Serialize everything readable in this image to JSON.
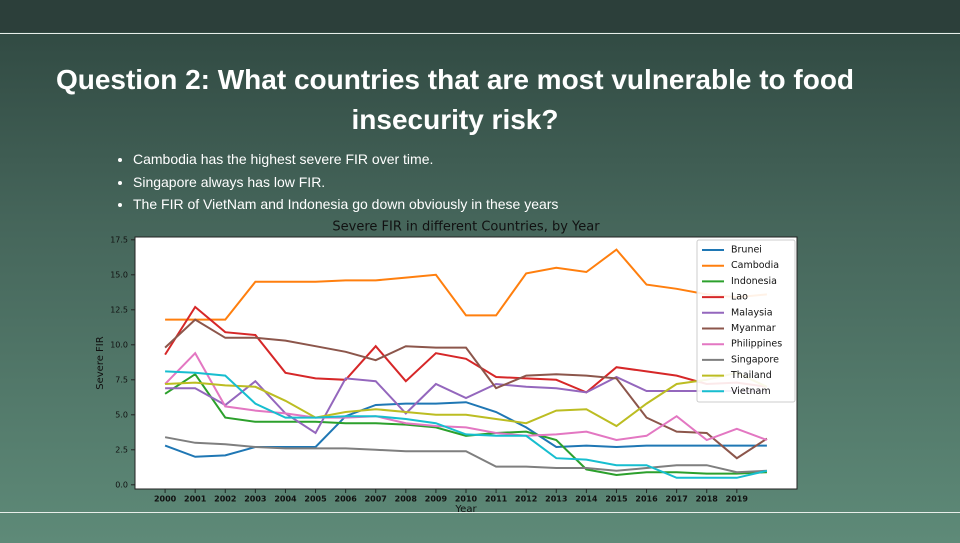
{
  "slide": {
    "title": "Question 2: What countries that are most vulnerable to food insecurity risk?",
    "bullets": [
      "Cambodia has the highest severe FIR over time.",
      "Singapore always has low FIR.",
      "The FIR of VietNam and Indonesia go down obviously in these years"
    ]
  },
  "chart_data": {
    "type": "line",
    "title": "Severe FIR  in different Countries, by Year",
    "x_label": "Year",
    "y_label": "Severe FIR",
    "x": [
      2000,
      2001,
      2002,
      2003,
      2004,
      2005,
      2006,
      2007,
      2008,
      2009,
      2010,
      2011,
      2012,
      2013,
      2014,
      2015,
      2016,
      2017,
      2018,
      2019,
      2020
    ],
    "xlim": [
      1999,
      2021
    ],
    "xticks": [
      2000,
      2001,
      2002,
      2003,
      2004,
      2005,
      2006,
      2007,
      2008,
      2009,
      2010,
      2011,
      2012,
      2013,
      2014,
      2015,
      2016,
      2017,
      2018,
      2019
    ],
    "ylim": [
      -0.3,
      17.7
    ],
    "yticks": [
      {
        "value": 0,
        "label": "0.0"
      },
      2.5,
      {
        "value": 5,
        "label": "5.0"
      },
      7.5,
      {
        "value": 10,
        "label": "10.0"
      },
      12.5,
      {
        "value": 15,
        "label": "15.0"
      },
      17.5
    ],
    "legend": "upper right",
    "series": [
      {
        "name": "Brunei",
        "color": "#1f77b4",
        "values": [
          2.8,
          2.0,
          2.1,
          2.7,
          2.7,
          2.7,
          4.9,
          5.7,
          5.8,
          5.8,
          5.9,
          5.2,
          4.1,
          2.7,
          2.8,
          2.7,
          2.8,
          2.8,
          2.8,
          2.8,
          2.8
        ]
      },
      {
        "name": "Cambodia",
        "color": "#ff7f0e",
        "values": [
          11.8,
          11.8,
          11.8,
          14.5,
          14.5,
          14.5,
          14.6,
          14.6,
          14.8,
          15.0,
          12.1,
          12.1,
          15.1,
          15.5,
          15.2,
          16.8,
          14.3,
          14.0,
          13.6,
          13.4,
          13.6
        ]
      },
      {
        "name": "Indonesia",
        "color": "#2ca02c",
        "values": [
          6.5,
          7.9,
          4.8,
          4.5,
          4.5,
          4.5,
          4.4,
          4.4,
          4.3,
          4.1,
          3.5,
          3.7,
          3.8,
          3.2,
          1.1,
          0.7,
          0.9,
          0.9,
          0.8,
          0.8,
          0.9
        ]
      },
      {
        "name": "Lao",
        "color": "#d62728",
        "values": [
          9.3,
          12.7,
          10.9,
          10.7,
          8.0,
          7.6,
          7.5,
          9.9,
          7.4,
          9.4,
          9.0,
          7.7,
          7.6,
          7.5,
          6.6,
          8.4,
          8.1,
          7.8,
          7.2,
          7.3,
          7.0
        ]
      },
      {
        "name": "Malaysia",
        "color": "#9467bd",
        "values": [
          6.9,
          6.9,
          5.7,
          7.4,
          5.1,
          3.7,
          7.6,
          7.4,
          5.1,
          7.2,
          6.2,
          7.2,
          7.0,
          6.9,
          6.6,
          7.7,
          6.7,
          6.7,
          6.7,
          6.7,
          6.7
        ]
      },
      {
        "name": "Myanmar",
        "color": "#8c564b",
        "values": [
          9.8,
          11.8,
          10.5,
          10.5,
          10.3,
          9.9,
          9.5,
          8.9,
          9.9,
          9.8,
          9.8,
          6.9,
          7.8,
          7.9,
          7.8,
          7.6,
          4.8,
          3.8,
          3.7,
          1.9,
          3.3
        ]
      },
      {
        "name": "Philippines",
        "color": "#e377c2",
        "values": [
          7.2,
          9.4,
          5.6,
          5.3,
          5.1,
          4.8,
          4.8,
          4.9,
          4.4,
          4.2,
          4.1,
          3.7,
          3.5,
          3.6,
          3.8,
          3.2,
          3.5,
          4.9,
          3.2,
          4.0,
          3.2
        ]
      },
      {
        "name": "Singapore",
        "color": "#7f7f7f",
        "values": [
          3.4,
          3.0,
          2.9,
          2.7,
          2.6,
          2.6,
          2.6,
          2.5,
          2.4,
          2.4,
          2.4,
          1.3,
          1.3,
          1.2,
          1.2,
          1.0,
          1.2,
          1.4,
          1.4,
          0.9,
          1.0
        ]
      },
      {
        "name": "Thailand",
        "color": "#bcbd22",
        "values": [
          7.2,
          7.3,
          7.1,
          7.0,
          6.0,
          4.8,
          5.2,
          5.4,
          5.2,
          5.0,
          5.0,
          4.7,
          4.4,
          5.3,
          5.4,
          4.2,
          5.8,
          7.2,
          7.5,
          8.0,
          7.0
        ]
      },
      {
        "name": "Vietnam",
        "color": "#17becf",
        "values": [
          8.1,
          8.0,
          7.8,
          5.8,
          4.8,
          4.8,
          4.9,
          4.9,
          4.7,
          4.4,
          3.6,
          3.5,
          3.5,
          1.9,
          1.8,
          1.4,
          1.4,
          0.5,
          0.5,
          0.5,
          1.0
        ]
      }
    ]
  }
}
